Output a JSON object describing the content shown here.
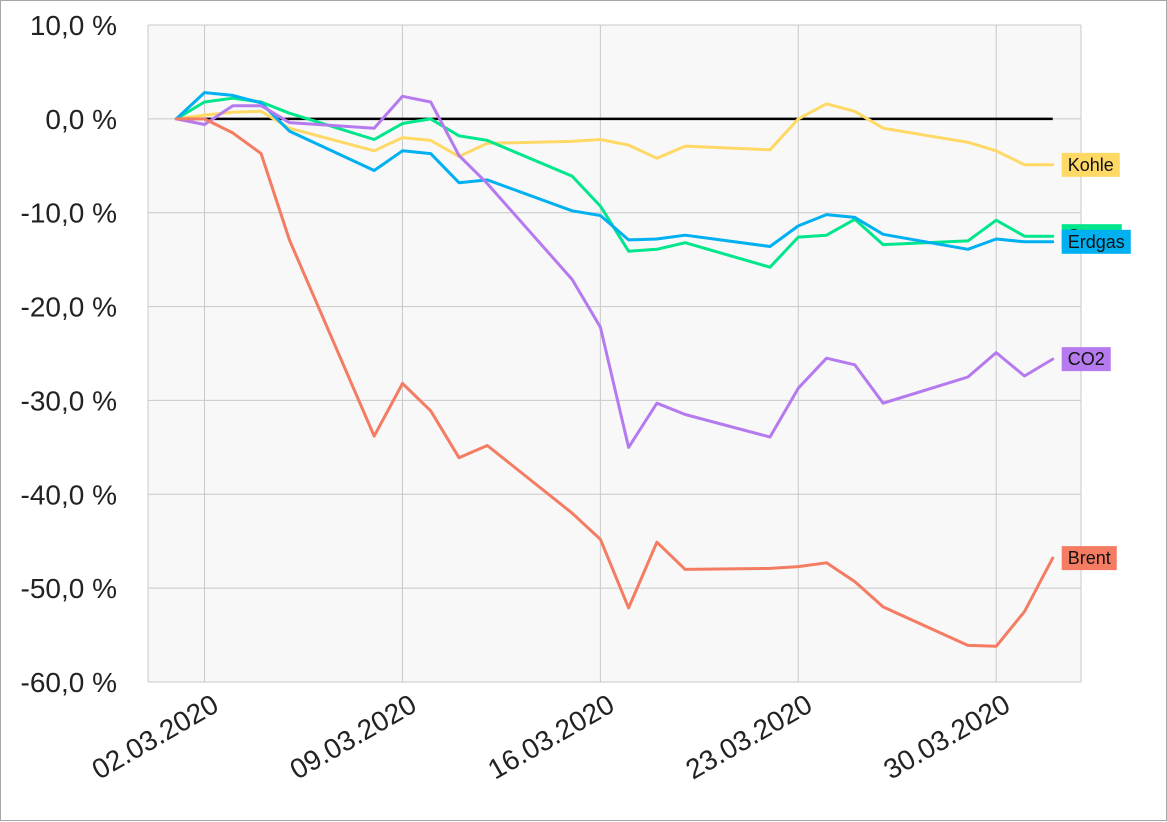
{
  "chart_data": {
    "type": "line",
    "title": "",
    "xlabel": "",
    "ylabel": "",
    "ylim": [
      -60,
      10
    ],
    "xlim": [
      "2020-02-29",
      "2020-04-02"
    ],
    "grid": true,
    "legend": "inline labels at line ends (right)",
    "plot_background": "#f8f8f8",
    "x_ticks": [
      {
        "date": "2020-03-02",
        "label": "02.03.2020"
      },
      {
        "date": "2020-03-09",
        "label": "09.03.2020"
      },
      {
        "date": "2020-03-16",
        "label": "16.03.2020"
      },
      {
        "date": "2020-03-23",
        "label": "23.03.2020"
      },
      {
        "date": "2020-03-30",
        "label": "30.03.2020"
      }
    ],
    "y_ticks": [
      {
        "value": 10,
        "label": "10,0 %"
      },
      {
        "value": 0,
        "label": "0,0 %"
      },
      {
        "value": -10,
        "label": "-10,0 %"
      },
      {
        "value": -20,
        "label": "-20,0 %"
      },
      {
        "value": -30,
        "label": "-30,0 %"
      },
      {
        "value": -40,
        "label": "-40,0 %"
      },
      {
        "value": -50,
        "label": "-50,0 %"
      },
      {
        "value": -60,
        "label": "-60,0 %"
      }
    ],
    "zero_line_color": "#000000",
    "series": [
      {
        "name": "Kohle",
        "color": "#ffd966",
        "points": [
          [
            "2020-03-01",
            0.0
          ],
          [
            "2020-03-02",
            0.4
          ],
          [
            "2020-03-03",
            0.7
          ],
          [
            "2020-03-04",
            0.8
          ],
          [
            "2020-03-05",
            -1.0
          ],
          [
            "2020-03-08",
            -3.4
          ],
          [
            "2020-03-09",
            -2.0
          ],
          [
            "2020-03-10",
            -2.3
          ],
          [
            "2020-03-11",
            -4.0
          ],
          [
            "2020-03-12",
            -2.6
          ],
          [
            "2020-03-15",
            -2.4
          ],
          [
            "2020-03-16",
            -2.2
          ],
          [
            "2020-03-17",
            -2.8
          ],
          [
            "2020-03-18",
            -4.2
          ],
          [
            "2020-03-19",
            -2.9
          ],
          [
            "2020-03-22",
            -3.3
          ],
          [
            "2020-03-23",
            0.0
          ],
          [
            "2020-03-24",
            1.6
          ],
          [
            "2020-03-25",
            0.8
          ],
          [
            "2020-03-26",
            -1.0
          ],
          [
            "2020-03-29",
            -2.5
          ],
          [
            "2020-03-30",
            -3.4
          ],
          [
            "2020-03-31",
            -4.9
          ],
          [
            "2020-04-01",
            -4.9
          ]
        ]
      },
      {
        "name": "Strom",
        "color": "#00e68c",
        "points": [
          [
            "2020-03-01",
            0.0
          ],
          [
            "2020-03-02",
            1.8
          ],
          [
            "2020-03-03",
            2.2
          ],
          [
            "2020-03-04",
            1.8
          ],
          [
            "2020-03-05",
            0.6
          ],
          [
            "2020-03-08",
            -2.2
          ],
          [
            "2020-03-09",
            -0.5
          ],
          [
            "2020-03-10",
            0.0
          ],
          [
            "2020-03-11",
            -1.8
          ],
          [
            "2020-03-12",
            -2.3
          ],
          [
            "2020-03-15",
            -6.1
          ],
          [
            "2020-03-16",
            -9.3
          ],
          [
            "2020-03-17",
            -14.1
          ],
          [
            "2020-03-18",
            -13.9
          ],
          [
            "2020-03-19",
            -13.2
          ],
          [
            "2020-03-22",
            -15.8
          ],
          [
            "2020-03-23",
            -12.6
          ],
          [
            "2020-03-24",
            -12.4
          ],
          [
            "2020-03-25",
            -10.7
          ],
          [
            "2020-03-26",
            -13.4
          ],
          [
            "2020-03-29",
            -13.0
          ],
          [
            "2020-03-30",
            -10.8
          ],
          [
            "2020-03-31",
            -12.5
          ],
          [
            "2020-04-01",
            -12.5
          ]
        ]
      },
      {
        "name": "Erdgas",
        "color": "#00b0f0",
        "points": [
          [
            "2020-03-01",
            0.0
          ],
          [
            "2020-03-02",
            2.8
          ],
          [
            "2020-03-03",
            2.5
          ],
          [
            "2020-03-04",
            1.7
          ],
          [
            "2020-03-05",
            -1.3
          ],
          [
            "2020-03-08",
            -5.5
          ],
          [
            "2020-03-09",
            -3.4
          ],
          [
            "2020-03-10",
            -3.7
          ],
          [
            "2020-03-11",
            -6.8
          ],
          [
            "2020-03-12",
            -6.5
          ],
          [
            "2020-03-15",
            -9.8
          ],
          [
            "2020-03-16",
            -10.3
          ],
          [
            "2020-03-17",
            -12.9
          ],
          [
            "2020-03-18",
            -12.8
          ],
          [
            "2020-03-19",
            -12.4
          ],
          [
            "2020-03-22",
            -13.6
          ],
          [
            "2020-03-23",
            -11.4
          ],
          [
            "2020-03-24",
            -10.2
          ],
          [
            "2020-03-25",
            -10.5
          ],
          [
            "2020-03-26",
            -12.3
          ],
          [
            "2020-03-29",
            -13.9
          ],
          [
            "2020-03-30",
            -12.8
          ],
          [
            "2020-03-31",
            -13.1
          ],
          [
            "2020-04-01",
            -13.1
          ]
        ]
      },
      {
        "name": "CO2",
        "color": "#b57aee",
        "points": [
          [
            "2020-03-01",
            0.0
          ],
          [
            "2020-03-02",
            -0.6
          ],
          [
            "2020-03-03",
            1.4
          ],
          [
            "2020-03-04",
            1.4
          ],
          [
            "2020-03-05",
            -0.4
          ],
          [
            "2020-03-08",
            -1.0
          ],
          [
            "2020-03-09",
            2.4
          ],
          [
            "2020-03-10",
            1.8
          ],
          [
            "2020-03-11",
            -3.9
          ],
          [
            "2020-03-12",
            -6.9
          ],
          [
            "2020-03-15",
            -17.1
          ],
          [
            "2020-03-16",
            -22.2
          ],
          [
            "2020-03-17",
            -35.0
          ],
          [
            "2020-03-18",
            -30.3
          ],
          [
            "2020-03-19",
            -31.5
          ],
          [
            "2020-03-22",
            -33.9
          ],
          [
            "2020-03-23",
            -28.7
          ],
          [
            "2020-03-24",
            -25.5
          ],
          [
            "2020-03-25",
            -26.2
          ],
          [
            "2020-03-26",
            -30.3
          ],
          [
            "2020-03-29",
            -27.5
          ],
          [
            "2020-03-30",
            -24.9
          ],
          [
            "2020-03-31",
            -27.4
          ],
          [
            "2020-04-01",
            -25.6
          ]
        ]
      },
      {
        "name": "Brent",
        "color": "#f47c62",
        "points": [
          [
            "2020-03-01",
            0.0
          ],
          [
            "2020-03-02",
            0.0
          ],
          [
            "2020-03-03",
            -1.5
          ],
          [
            "2020-03-04",
            -3.7
          ],
          [
            "2020-03-05",
            -12.9
          ],
          [
            "2020-03-08",
            -33.8
          ],
          [
            "2020-03-09",
            -28.2
          ],
          [
            "2020-03-10",
            -31.1
          ],
          [
            "2020-03-11",
            -36.1
          ],
          [
            "2020-03-12",
            -34.8
          ],
          [
            "2020-03-15",
            -42.0
          ],
          [
            "2020-03-16",
            -44.8
          ],
          [
            "2020-03-17",
            -52.1
          ],
          [
            "2020-03-18",
            -45.1
          ],
          [
            "2020-03-19",
            -48.0
          ],
          [
            "2020-03-22",
            -47.9
          ],
          [
            "2020-03-23",
            -47.7
          ],
          [
            "2020-03-24",
            -47.3
          ],
          [
            "2020-03-25",
            -49.3
          ],
          [
            "2020-03-26",
            -52.0
          ],
          [
            "2020-03-29",
            -56.1
          ],
          [
            "2020-03-30",
            -56.2
          ],
          [
            "2020-03-31",
            -52.5
          ],
          [
            "2020-04-01",
            -46.8
          ]
        ]
      }
    ]
  }
}
